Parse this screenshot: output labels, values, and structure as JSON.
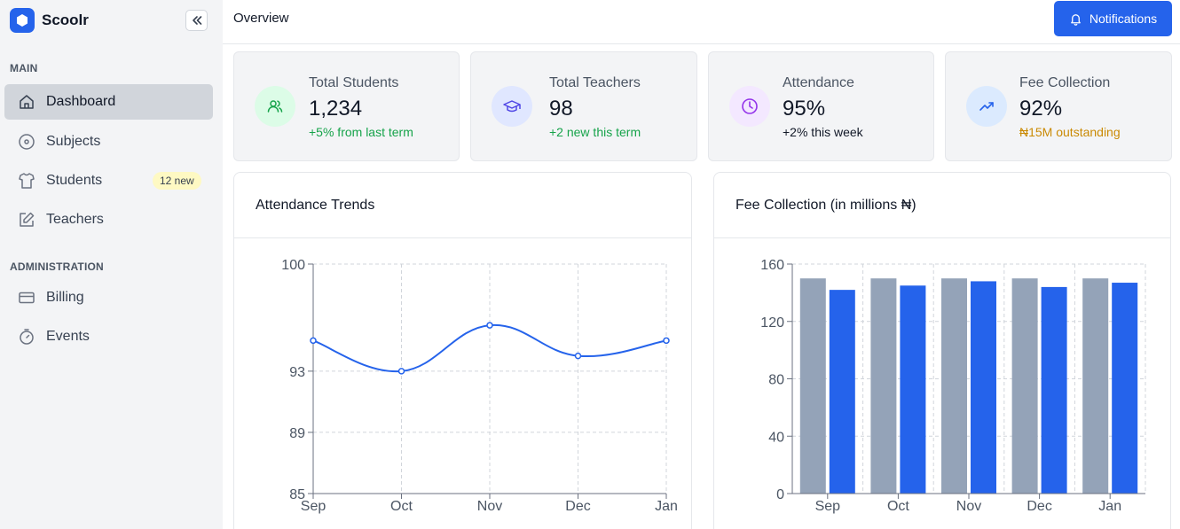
{
  "brand": {
    "name": "Scoolr"
  },
  "sidebar": {
    "sections": [
      {
        "label": "MAIN",
        "items": [
          {
            "label": "Dashboard",
            "icon": "home-icon",
            "active": true
          },
          {
            "label": "Subjects",
            "icon": "disc-icon"
          },
          {
            "label": "Students",
            "icon": "shirt-icon",
            "badge": "12 new"
          },
          {
            "label": "Teachers",
            "icon": "edit-icon"
          }
        ]
      },
      {
        "label": "ADMINISTRATION",
        "items": [
          {
            "label": "Billing",
            "icon": "credit-card-icon"
          },
          {
            "label": "Events",
            "icon": "timer-icon"
          }
        ]
      }
    ]
  },
  "topbar": {
    "title": "Overview",
    "notifications_label": "Notifications"
  },
  "stats": [
    {
      "label": "Total Students",
      "value": "1,234",
      "sub": "+5% from last term",
      "icon": "users-icon",
      "icon_bg": "#dcfce7",
      "icon_color": "#16a34a",
      "sub_color": "#16a34a"
    },
    {
      "label": "Total Teachers",
      "value": "98",
      "sub": "+2 new this term",
      "icon": "graduation-cap-icon",
      "icon_bg": "#e0e7ff",
      "icon_color": "#4f46e5",
      "sub_color": "#16a34a"
    },
    {
      "label": "Attendance",
      "value": "95%",
      "sub": "+2% this week",
      "icon": "clock-icon",
      "icon_bg": "#f3e8ff",
      "icon_color": "#9333ea",
      "sub_color": "#111827"
    },
    {
      "label": "Fee Collection",
      "value": "92%",
      "sub": "₦15M outstanding",
      "icon": "trending-up-icon",
      "icon_bg": "#dbeafe",
      "icon_color": "#2563eb",
      "sub_color": "#ca8a04"
    }
  ],
  "chart_data": [
    {
      "type": "line",
      "title": "Attendance Trends",
      "categories": [
        "Sep",
        "Oct",
        "Nov",
        "Dec",
        "Jan"
      ],
      "values": [
        95,
        93,
        96,
        94,
        95
      ],
      "yticks": [
        85,
        89,
        93,
        100
      ],
      "ylim": [
        85,
        100
      ],
      "color": "#2563eb",
      "grid": true
    },
    {
      "type": "bar",
      "title": "Fee Collection (in millions ₦)",
      "categories": [
        "Sep",
        "Oct",
        "Nov",
        "Dec",
        "Jan"
      ],
      "series": [
        {
          "values": [
            150,
            150,
            150,
            150,
            150
          ],
          "color": "#94a3b8"
        },
        {
          "values": [
            142,
            145,
            148,
            144,
            147
          ],
          "color": "#2563eb"
        }
      ],
      "yticks": [
        0,
        40,
        80,
        120,
        160
      ],
      "ylim": [
        0,
        160
      ],
      "grid": true
    }
  ]
}
